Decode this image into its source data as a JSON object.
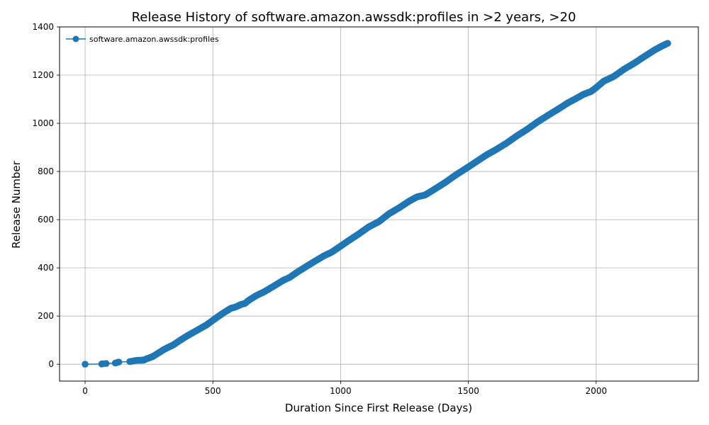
{
  "chart_data": {
    "type": "line",
    "title": "Release History of software.amazon.awssdk:profiles in >2 years, >20",
    "xlabel": "Duration Since First Release (Days)",
    "ylabel": "Release Number",
    "xlim": [
      -100,
      2400
    ],
    "ylim": [
      -70,
      1400
    ],
    "xticks": [
      0,
      500,
      1000,
      1500,
      2000
    ],
    "yticks": [
      0,
      200,
      400,
      600,
      800,
      1000,
      1200,
      1400
    ],
    "xtick_labels": [
      "0",
      "500",
      "1000",
      "1500",
      "2000"
    ],
    "ytick_labels": [
      "0",
      "200",
      "400",
      "600",
      "800",
      "1000",
      "1200",
      "1400"
    ],
    "grid": true,
    "legend_position": "top-left",
    "series": [
      {
        "name": "software.amazon.awssdk:profiles",
        "color": "#1f77b4",
        "marker": "circle",
        "points": [
          [
            0,
            0
          ],
          [
            65,
            1
          ],
          [
            70,
            2
          ],
          [
            82,
            3
          ],
          [
            118,
            5
          ],
          [
            122,
            6
          ],
          [
            128,
            8
          ],
          [
            132,
            9
          ],
          [
            175,
            11
          ],
          [
            182,
            12
          ],
          [
            190,
            14
          ],
          [
            197,
            15
          ],
          [
            202,
            16
          ],
          [
            230,
            17
          ],
          [
            235,
            20
          ],
          [
            250,
            26
          ],
          [
            265,
            32
          ],
          [
            280,
            42
          ],
          [
            295,
            52
          ],
          [
            310,
            62
          ],
          [
            325,
            70
          ],
          [
            345,
            80
          ],
          [
            370,
            98
          ],
          [
            400,
            118
          ],
          [
            440,
            142
          ],
          [
            475,
            163
          ],
          [
            510,
            190
          ],
          [
            540,
            212
          ],
          [
            570,
            232
          ],
          [
            590,
            238
          ],
          [
            610,
            248
          ],
          [
            625,
            252
          ],
          [
            640,
            265
          ],
          [
            670,
            285
          ],
          [
            700,
            300
          ],
          [
            735,
            322
          ],
          [
            775,
            348
          ],
          [
            800,
            360
          ],
          [
            830,
            382
          ],
          [
            860,
            402
          ],
          [
            900,
            428
          ],
          [
            935,
            450
          ],
          [
            965,
            465
          ],
          [
            1000,
            490
          ],
          [
            1030,
            512
          ],
          [
            1070,
            540
          ],
          [
            1110,
            570
          ],
          [
            1150,
            592
          ],
          [
            1190,
            625
          ],
          [
            1230,
            650
          ],
          [
            1270,
            678
          ],
          [
            1300,
            695
          ],
          [
            1330,
            702
          ],
          [
            1370,
            728
          ],
          [
            1410,
            755
          ],
          [
            1450,
            785
          ],
          [
            1490,
            812
          ],
          [
            1530,
            840
          ],
          [
            1570,
            868
          ],
          [
            1610,
            892
          ],
          [
            1650,
            918
          ],
          [
            1690,
            948
          ],
          [
            1730,
            975
          ],
          [
            1770,
            1005
          ],
          [
            1810,
            1032
          ],
          [
            1850,
            1058
          ],
          [
            1890,
            1085
          ],
          [
            1920,
            1102
          ],
          [
            1950,
            1120
          ],
          [
            1980,
            1132
          ],
          [
            2000,
            1148
          ],
          [
            2030,
            1175
          ],
          [
            2070,
            1195
          ],
          [
            2110,
            1225
          ],
          [
            2150,
            1250
          ],
          [
            2190,
            1278
          ],
          [
            2230,
            1305
          ],
          [
            2260,
            1322
          ],
          [
            2280,
            1332
          ]
        ]
      }
    ]
  }
}
